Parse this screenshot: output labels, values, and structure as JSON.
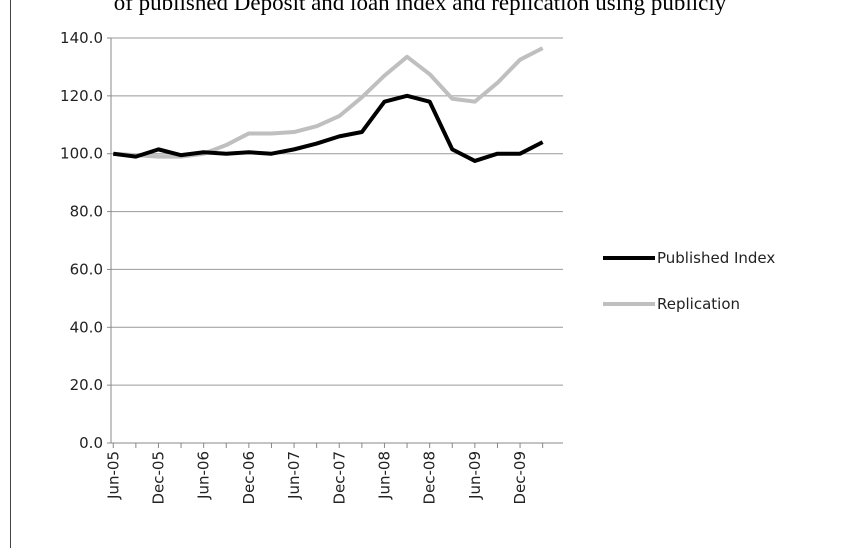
{
  "chart_data": {
    "type": "line",
    "title": "of published Deposit and loan index and replication using publicly",
    "categories": [
      "Jun-05",
      null,
      "Dec-05",
      null,
      "Jun-06",
      null,
      "Dec-06",
      null,
      "Jun-07",
      null,
      "Dec-07",
      null,
      "Jun-08",
      null,
      "Dec-08",
      null,
      "Jun-09",
      null,
      "Dec-09",
      null
    ],
    "series": [
      {
        "name": "Published Index",
        "color": "#000000",
        "values": [
          100,
          99,
          101.5,
          99.5,
          100.5,
          100,
          100.5,
          100,
          101.5,
          103.5,
          106,
          107.5,
          118,
          120,
          118,
          101.5,
          97.5,
          100,
          100,
          104
        ]
      },
      {
        "name": "Replication",
        "color": "#bfbfbf",
        "values": [
          100,
          99.5,
          99,
          99,
          100,
          103,
          107,
          107,
          107.5,
          109.5,
          113,
          119.5,
          127,
          133.5,
          127.5,
          119,
          118,
          124.5,
          132.5,
          136.5
        ]
      }
    ],
    "ylim": [
      0,
      140
    ],
    "yticks": [
      {
        "value": 0,
        "label": "0.0"
      },
      {
        "value": 20,
        "label": "20.0"
      },
      {
        "value": 40,
        "label": "40.0"
      },
      {
        "value": 60,
        "label": "60.0"
      },
      {
        "value": 80,
        "label": "80.0"
      },
      {
        "value": 100,
        "label": "100.0"
      },
      {
        "value": 120,
        "label": "120.0"
      },
      {
        "value": 140,
        "label": "140.0"
      }
    ],
    "grid": true,
    "legend": "right"
  }
}
